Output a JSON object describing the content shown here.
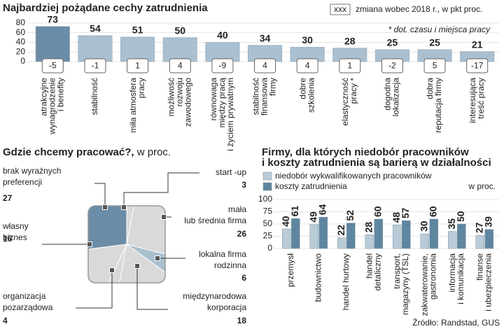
{
  "chart_data": [
    {
      "type": "bar",
      "title": "Najbardziej pożądane cechy zatrudnienia",
      "legend_sample": "xxx",
      "legend_text": "zmiana wobec 2018 r., w pkt proc.",
      "note": "* dot. czasu i miejsca pracy",
      "categories": [
        [
          "atrakcyjne",
          "wynagrodzenie",
          "i benefity"
        ],
        [
          "stabilność"
        ],
        [
          "miła atmosfera",
          "pracy"
        ],
        [
          "możliwość",
          "rozwoju",
          "zawodowego"
        ],
        [
          "równowaga",
          "między pracą",
          "i życiem prywatnym"
        ],
        [
          "stabilność",
          "finansowa",
          "firmy"
        ],
        [
          "dobre",
          "szkolenia"
        ],
        [
          "elastyczność",
          "pracy *"
        ],
        [
          "dogodna",
          "lokalizacja"
        ],
        [
          "dobra",
          "reputacja firmy"
        ],
        [
          "interesująca",
          "treść pracy"
        ]
      ],
      "values": [
        73,
        54,
        51,
        50,
        40,
        34,
        30,
        28,
        25,
        25,
        21
      ],
      "changes": [
        -5,
        -1,
        1,
        4,
        -9,
        4,
        4,
        1,
        -2,
        5,
        -17
      ],
      "colors": [
        "#6b8ca6",
        "#aabfcf"
      ],
      "ylim": [
        0,
        80
      ],
      "yticks": [
        0,
        20,
        40,
        60,
        80
      ],
      "grid": true
    },
    {
      "type": "pie",
      "title": "Gdzie chcemy pracować?,",
      "subtitle": "w proc.",
      "labels": [
        [
          "brak wyraźnych",
          "preferencji"
        ],
        [
          "start -up"
        ],
        [
          "mała",
          "lub średnia firma"
        ],
        [
          "lokalna firma",
          "rodzinna"
        ],
        [
          "międzynarodowa",
          "korporacja"
        ],
        [
          "organizacja",
          "pozarządowa"
        ],
        [
          "własny",
          "biznes"
        ]
      ],
      "values": [
        27,
        3,
        26,
        6,
        18,
        4,
        16
      ],
      "colors": [
        "#6b8ca6",
        "#d9d9d9",
        "#d9d9d9",
        "#a9c0cf",
        "#d9d9d9",
        "#d9d9d9",
        "#d9d9d9"
      ],
      "highlight_color": "#9b2c2c"
    },
    {
      "type": "grouped-bar",
      "title": [
        "Firmy, dla których niedobór pracowników",
        "i koszty zatrudnienia są barierą w działalności"
      ],
      "unit": "w proc.",
      "categories": [
        [
          "przemysł"
        ],
        [
          "budownictwo"
        ],
        [
          "handel hurtowy"
        ],
        [
          "handel",
          "detaliczny"
        ],
        [
          "transport,",
          "magazyny (TSL)"
        ],
        [
          "zakwaterowanie,",
          "gastronomia"
        ],
        [
          "informacja",
          "i komunikacja"
        ],
        [
          "finanse",
          "i ubezpieczenia"
        ]
      ],
      "series": [
        {
          "name": "niedobór wykwalifikowanych pracowników",
          "color": "#b9cbd7",
          "values": [
            40,
            49,
            22,
            28,
            48,
            30,
            35,
            27
          ]
        },
        {
          "name": "koszty zatrudnienia",
          "color": "#5f86a0",
          "values": [
            61,
            64,
            52,
            60,
            57,
            60,
            50,
            39
          ]
        }
      ],
      "ylim": [
        0,
        100
      ],
      "yticks": [
        0,
        25,
        50,
        75,
        100
      ],
      "grid": true,
      "source": "Źródło: Randstad, GUS"
    }
  ]
}
